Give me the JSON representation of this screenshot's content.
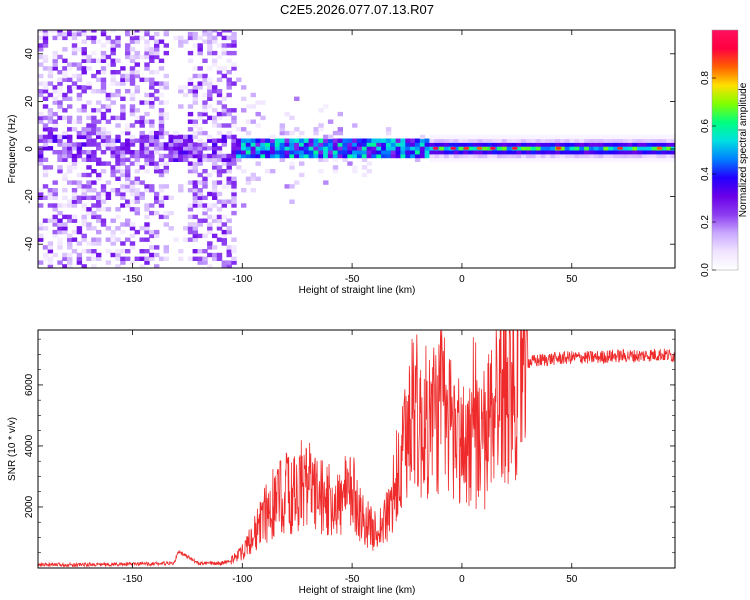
{
  "title": "C2E5.2026.077.07.13.R07",
  "colors": {
    "axis": "#000000",
    "snr_line": "#ee2a2a",
    "colormap": [
      "#ffffff",
      "#f0e4ff",
      "#c9a8ff",
      "#8c3cf0",
      "#6a00e8",
      "#2200ff",
      "#0080ff",
      "#00e0e0",
      "#00ff80",
      "#80ff00",
      "#ffe000",
      "#ff6000",
      "#ff0040",
      "#ff1060"
    ]
  },
  "chart_data": [
    {
      "id": "spectrogram",
      "type": "heatmap",
      "xlabel": "Height of straight line (km)",
      "ylabel": "Frequency (Hz)",
      "xlim": [
        -193,
        97
      ],
      "ylim": [
        -50,
        50
      ],
      "xticks": [
        -150,
        -100,
        -50,
        0,
        50
      ],
      "xtick_labels": [
        "-150",
        "-100",
        "-50",
        "0",
        "50"
      ],
      "yticks": [
        -40,
        -20,
        0,
        20,
        40
      ],
      "ytick_labels": [
        "-40",
        "-20",
        "0",
        "20",
        "40"
      ],
      "colorbar": {
        "label": "Normalized spectral amplitude",
        "range": [
          0,
          1
        ],
        "ticks": [
          0.0,
          0.2,
          0.4,
          0.6,
          0.8
        ],
        "tick_labels": [
          "0.0",
          "0.2",
          "0.4",
          "0.6",
          "0.8"
        ]
      },
      "features": {
        "noise_region_x": [
          -193,
          -105
        ],
        "noise_gap_x": [
          -135,
          -125
        ],
        "transition_x": [
          -105,
          -15
        ],
        "narrowband_x": [
          -15,
          97
        ],
        "center_frequency_hz": 0
      }
    },
    {
      "id": "snr",
      "type": "line",
      "xlabel": "Height of straight line (km)",
      "ylabel": "SNR (10 * v/v)",
      "xlim": [
        -193,
        97
      ],
      "ylim": [
        0,
        7800
      ],
      "xticks": [
        -150,
        -100,
        -50,
        0,
        50
      ],
      "xtick_labels": [
        "-150",
        "-100",
        "-50",
        "0",
        "50"
      ],
      "yticks": [
        2000,
        4000,
        6000
      ],
      "ytick_labels": [
        "2000",
        "4000",
        "6000"
      ],
      "series": [
        {
          "name": "SNR",
          "x": [
            -193,
            -160,
            -131,
            -129,
            -120,
            -110,
            -105,
            -100,
            -95,
            -90,
            -85,
            -80,
            -75,
            -70,
            -65,
            -60,
            -55,
            -50,
            -45,
            -40,
            -35,
            -30,
            -25,
            -22,
            -20,
            -15,
            -10,
            -5,
            0,
            5,
            10,
            15,
            20,
            25,
            30,
            40,
            50,
            60,
            70,
            80,
            90,
            97
          ],
          "values": [
            100,
            120,
            150,
            550,
            150,
            150,
            250,
            500,
            1050,
            1700,
            2200,
            2500,
            2400,
            2700,
            2300,
            2200,
            2100,
            2500,
            1600,
            1200,
            1500,
            2500,
            4200,
            6300,
            4500,
            4800,
            5200,
            4700,
            4000,
            4300,
            3800,
            5800,
            6000,
            6400,
            6750,
            6850,
            6900,
            6900,
            6950,
            6950,
            7000,
            6950
          ]
        }
      ]
    }
  ]
}
